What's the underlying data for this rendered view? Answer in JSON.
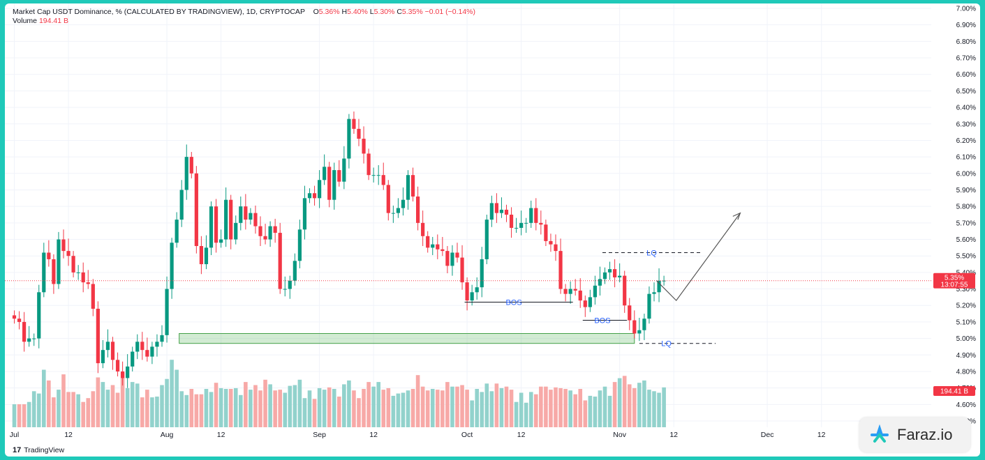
{
  "header": {
    "title": "Market Cap USDT Dominance, % (CALCULATED BY TRADINGVIEW), 1D, CRYPTOCAP",
    "o_label": "O",
    "o_value": "5.36%",
    "h_label": "H",
    "h_value": "5.40%",
    "l_label": "L",
    "l_value": "5.30%",
    "c_label": "C",
    "c_value": "5.35%",
    "change": "−0.01 (−0.14%)",
    "volume_label": "Volume",
    "volume_value": "194.41 B"
  },
  "price_badge": {
    "price": "5.35%",
    "countdown": "13:07:55"
  },
  "volume_badge": "194.41 B",
  "footer": {
    "tradingview": "TradingView"
  },
  "watermark": {
    "brand": "Faraz.io"
  },
  "colors": {
    "up": "#089981",
    "down": "#f23645",
    "vol_up": "#92d2cc",
    "vol_down": "#f7a9a7",
    "annotation": "#2962ff",
    "frame": "#1fc9b9"
  },
  "chart_data": {
    "type": "candlestick",
    "title": "Market Cap USDT Dominance, % (CALCULATED BY TRADINGVIEW), 1D, CRYPTOCAP",
    "y_axis": {
      "ticks": [
        "4.50%",
        "4.60%",
        "4.70%",
        "4.80%",
        "4.90%",
        "5.00%",
        "5.10%",
        "5.20%",
        "5.30%",
        "5.40%",
        "5.50%",
        "5.60%",
        "5.70%",
        "5.80%",
        "5.90%",
        "6.00%",
        "6.10%",
        "6.20%",
        "6.30%",
        "6.40%",
        "6.50%",
        "6.60%",
        "6.70%",
        "6.80%",
        "6.90%",
        "7.00%"
      ],
      "range": [
        4.5,
        7.0
      ],
      "position": "right"
    },
    "x_axis": {
      "ticks": [
        {
          "label": "Jul",
          "day": 0
        },
        {
          "label": "12",
          "day": 11
        },
        {
          "label": "Aug",
          "day": 31
        },
        {
          "label": "12",
          "day": 42
        },
        {
          "label": "Sep",
          "day": 62
        },
        {
          "label": "12",
          "day": 73
        },
        {
          "label": "Oct",
          "day": 92
        },
        {
          "label": "12",
          "day": 103
        },
        {
          "label": "Nov",
          "day": 123
        },
        {
          "label": "12",
          "day": 134
        },
        {
          "label": "Dec",
          "day": 153
        },
        {
          "label": "12",
          "day": 164
        }
      ]
    },
    "last_close": 5.35,
    "closes": [
      5.12,
      5.1,
      4.98,
      5.0,
      5.0,
      5.28,
      5.52,
      5.48,
      5.33,
      5.6,
      5.53,
      5.5,
      5.4,
      5.4,
      5.34,
      5.33,
      5.18,
      4.85,
      4.93,
      4.98,
      4.87,
      4.8,
      4.76,
      4.83,
      4.92,
      4.98,
      4.93,
      4.89,
      4.95,
      4.98,
      5.02,
      5.3,
      5.58,
      5.72,
      5.9,
      6.1,
      6.0,
      5.56,
      5.45,
      5.55,
      5.8,
      5.58,
      5.6,
      5.84,
      5.6,
      5.7,
      5.8,
      5.72,
      5.76,
      5.68,
      5.62,
      5.6,
      5.68,
      5.64,
      5.3,
      5.3,
      5.35,
      5.47,
      5.66,
      5.85,
      5.88,
      5.85,
      5.96,
      6.04,
      5.84,
      6.02,
      5.95,
      6.09,
      6.33,
      6.27,
      6.21,
      6.12,
      5.99,
      5.99,
      5.99,
      5.93,
      5.76,
      5.76,
      5.79,
      5.84,
      5.99,
      5.86,
      5.7,
      5.62,
      5.55,
      5.57,
      5.54,
      5.53,
      5.44,
      5.52,
      5.49,
      5.34,
      5.23,
      5.28,
      5.31,
      5.48,
      5.72,
      5.82,
      5.76,
      5.78,
      5.75,
      5.67,
      5.67,
      5.7,
      5.7,
      5.79,
      5.7,
      5.69,
      5.59,
      5.57,
      5.53,
      5.3,
      5.27,
      5.3,
      5.29,
      5.23,
      5.19,
      5.25,
      5.32,
      5.36,
      5.4,
      5.42,
      5.37,
      5.38,
      5.2,
      5.11,
      5.03,
      5.05,
      5.12,
      5.27,
      5.28,
      5.35,
      5.35
    ],
    "volumes_relative": [
      0.3,
      0.3,
      0.3,
      0.33,
      0.47,
      0.44,
      0.75,
      0.61,
      0.39,
      0.49,
      0.69,
      0.46,
      0.46,
      0.43,
      0.33,
      0.38,
      0.47,
      0.65,
      0.59,
      0.49,
      0.55,
      0.45,
      0.71,
      0.51,
      0.59,
      0.57,
      0.39,
      0.49,
      0.39,
      0.4,
      0.55,
      0.63,
      0.88,
      0.75,
      0.47,
      0.42,
      0.5,
      0.43,
      0.43,
      0.5,
      0.46,
      0.58,
      0.51,
      0.5,
      0.5,
      0.51,
      0.42,
      0.59,
      0.49,
      0.55,
      0.48,
      0.62,
      0.56,
      0.48,
      0.49,
      0.45,
      0.54,
      0.55,
      0.62,
      0.38,
      0.48,
      0.37,
      0.51,
      0.49,
      0.52,
      0.5,
      0.4,
      0.56,
      0.61,
      0.48,
      0.38,
      0.5,
      0.59,
      0.53,
      0.59,
      0.49,
      0.51,
      0.41,
      0.44,
      0.45,
      0.48,
      0.5,
      0.68,
      0.53,
      0.48,
      0.5,
      0.49,
      0.48,
      0.59,
      0.53,
      0.53,
      0.55,
      0.49,
      0.35,
      0.5,
      0.46,
      0.57,
      0.47,
      0.57,
      0.51,
      0.53,
      0.49,
      0.33,
      0.45,
      0.32,
      0.46,
      0.43,
      0.53,
      0.53,
      0.49,
      0.52,
      0.51,
      0.5,
      0.48,
      0.43,
      0.5,
      0.35,
      0.41,
      0.4,
      0.48,
      0.53,
      0.41,
      0.59,
      0.64,
      0.67,
      0.56,
      0.51,
      0.58,
      0.61,
      0.49,
      0.47,
      0.45,
      0.52
    ],
    "annotations": [
      {
        "type": "label",
        "text": "BOS",
        "price": 5.22
      },
      {
        "type": "label",
        "text": "BOS",
        "price": 5.11
      },
      {
        "type": "label",
        "text": "LQ",
        "price": 5.52
      },
      {
        "type": "label",
        "text": "LQ",
        "price": 4.97
      },
      {
        "type": "zone",
        "price_low": 4.97,
        "price_high": 5.03
      }
    ]
  }
}
